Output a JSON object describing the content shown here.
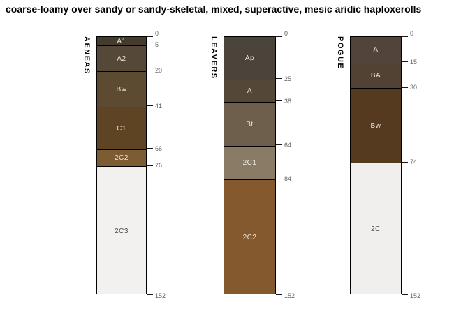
{
  "title": "coarse-loamy over sandy or sandy-skeletal, mixed, superactive, mesic aridic haploxerolls",
  "style": {
    "background": "#ffffff",
    "horizon_border": "#000000",
    "tick_line_color": "#1a1a1a",
    "tick_label_color": "#636363",
    "dark_horizon_text": "#e9e4db",
    "light_horizon_text": "#4d4d4d"
  },
  "chart_data": {
    "type": "bar",
    "subtype": "soil-profile-depth-columns",
    "title": "coarse-loamy over sandy or sandy-skeletal, mixed, superactive, mesic aridic haploxerolls",
    "depth_unit": "cm",
    "ylim": [
      0,
      152
    ],
    "legend": "none",
    "profiles": [
      {
        "name": "AENEAS",
        "depth_ticks": [
          0,
          5,
          20,
          41,
          66,
          76,
          152
        ],
        "horizons": [
          {
            "label": "A1",
            "top": 0,
            "bottom": 5,
            "color": "#453a2e",
            "label_color": "#e9e4db"
          },
          {
            "label": "A2",
            "top": 5,
            "bottom": 20,
            "color": "#564839",
            "label_color": "#e9e4db"
          },
          {
            "label": "Bw",
            "top": 20,
            "bottom": 41,
            "color": "#5c4a31",
            "label_color": "#e9e4db"
          },
          {
            "label": "C1",
            "top": 41,
            "bottom": 66,
            "color": "#5e4423",
            "label_color": "#e9e4db"
          },
          {
            "label": "2C2",
            "top": 66,
            "bottom": 76,
            "color": "#7b5c33",
            "label_color": "#e9e4db"
          },
          {
            "label": "2C3",
            "top": 76,
            "bottom": 152,
            "color": "#f2f1ef",
            "label_color": "#4d4d4d"
          }
        ]
      },
      {
        "name": "LEAVERS",
        "depth_ticks": [
          0,
          25,
          38,
          64,
          84,
          152
        ],
        "horizons": [
          {
            "label": "Ap",
            "top": 0,
            "bottom": 25,
            "color": "#4b443a",
            "label_color": "#e9e4db"
          },
          {
            "label": "A",
            "top": 25,
            "bottom": 38,
            "color": "#544737",
            "label_color": "#e9e4db"
          },
          {
            "label": "Bt",
            "top": 38,
            "bottom": 64,
            "color": "#6d5f4b",
            "label_color": "#e9e4db"
          },
          {
            "label": "2C1",
            "top": 64,
            "bottom": 84,
            "color": "#8a7b67",
            "label_color": "#efeae2"
          },
          {
            "label": "2C2",
            "top": 84,
            "bottom": 152,
            "color": "#84592e",
            "label_color": "#e9e4db"
          }
        ]
      },
      {
        "name": "POGUE",
        "depth_ticks": [
          0,
          15,
          30,
          74,
          152
        ],
        "horizons": [
          {
            "label": "A",
            "top": 0,
            "bottom": 15,
            "color": "#52443a",
            "label_color": "#e9e4db"
          },
          {
            "label": "BA",
            "top": 15,
            "bottom": 30,
            "color": "#524234",
            "label_color": "#e9e4db"
          },
          {
            "label": "Bw",
            "top": 30,
            "bottom": 74,
            "color": "#553a1f",
            "label_color": "#e9e4db"
          },
          {
            "label": "2C",
            "top": 74,
            "bottom": 152,
            "color": "#f0efed",
            "label_color": "#4d4d4d"
          }
        ]
      }
    ]
  }
}
